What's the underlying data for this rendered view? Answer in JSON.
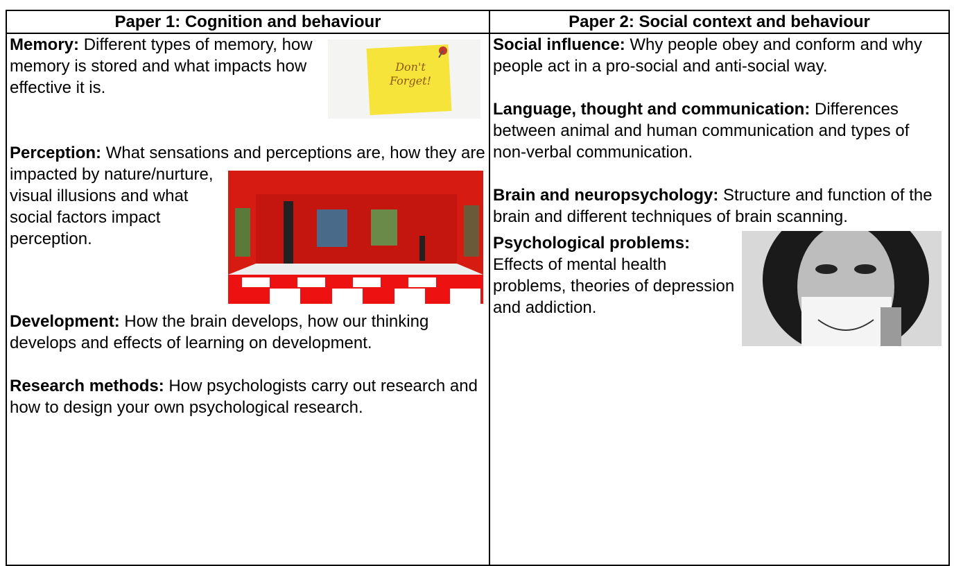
{
  "columns": [
    {
      "header": "Paper 1: Cognition and behaviour",
      "topics": [
        {
          "title": "Memory:",
          "text": "Different types of memory, how memory is stored and what impacts how effective it is.",
          "image_text": "Don't Forget!"
        },
        {
          "title": "Perception:",
          "text": "What sensations and perceptions are, how they are impacted by nature/nurture, visual illusions and what social factors impact perception."
        },
        {
          "title": "Development:",
          "text": "How the brain develops, how our thinking develops and effects of learning on development."
        },
        {
          "title": "Research methods:",
          "text": "How psychologists carry out research and how to design your own psychological research."
        }
      ]
    },
    {
      "header": "Paper 2: Social context and behaviour",
      "topics": [
        {
          "title": "Social influence:",
          "text": "Why people obey and conform and why people act in a pro-social and anti-social way."
        },
        {
          "title": "Language, thought and communication:",
          "text": "Differences between animal and human communication and types of non-verbal communication."
        },
        {
          "title": "Brain and neuropsychology:",
          "text": "Structure and function of the brain and different techniques of brain scanning."
        },
        {
          "title": "Psychological problems:",
          "text": "Effects of mental health problems, theories of depression and addiction."
        }
      ]
    }
  ]
}
